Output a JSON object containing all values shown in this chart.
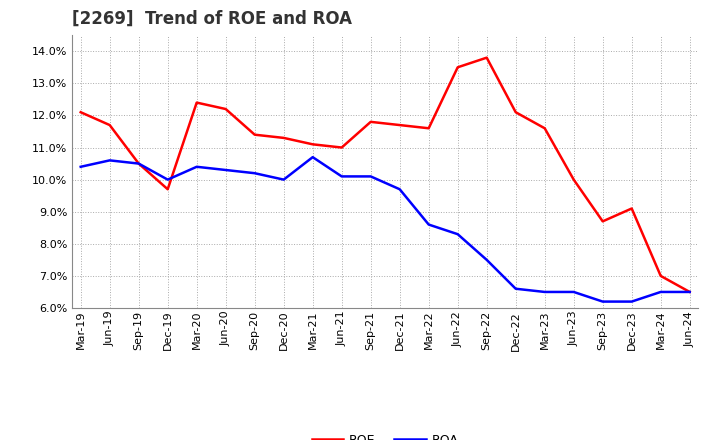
{
  "title": "[2269]  Trend of ROE and ROA",
  "labels": [
    "Mar-19",
    "Jun-19",
    "Sep-19",
    "Dec-19",
    "Mar-20",
    "Jun-20",
    "Sep-20",
    "Dec-20",
    "Mar-21",
    "Jun-21",
    "Sep-21",
    "Dec-21",
    "Mar-22",
    "Jun-22",
    "Sep-22",
    "Dec-22",
    "Mar-23",
    "Jun-23",
    "Sep-23",
    "Dec-23",
    "Mar-24",
    "Jun-24"
  ],
  "ROE": [
    12.1,
    11.7,
    10.5,
    9.7,
    12.4,
    12.2,
    11.4,
    11.3,
    11.1,
    11.0,
    11.8,
    11.7,
    11.6,
    13.5,
    13.8,
    12.1,
    11.6,
    10.0,
    8.7,
    9.1,
    7.0,
    6.5
  ],
  "ROA": [
    10.4,
    10.6,
    10.5,
    10.0,
    10.4,
    10.3,
    10.2,
    10.0,
    10.7,
    10.1,
    10.1,
    9.7,
    8.6,
    8.3,
    7.5,
    6.6,
    6.5,
    6.5,
    6.2,
    6.2,
    6.5,
    6.5
  ],
  "ylim": [
    6.0,
    14.5
  ],
  "yticks": [
    6.0,
    7.0,
    8.0,
    9.0,
    10.0,
    11.0,
    12.0,
    13.0,
    14.0
  ],
  "roe_color": "#FF0000",
  "roa_color": "#0000FF",
  "bg_color": "#FFFFFF",
  "plot_bg_color": "#FFFFFF",
  "grid_color": "#AAAAAA",
  "title_fontsize": 12,
  "axis_fontsize": 8,
  "legend_fontsize": 9,
  "linewidth": 1.8
}
